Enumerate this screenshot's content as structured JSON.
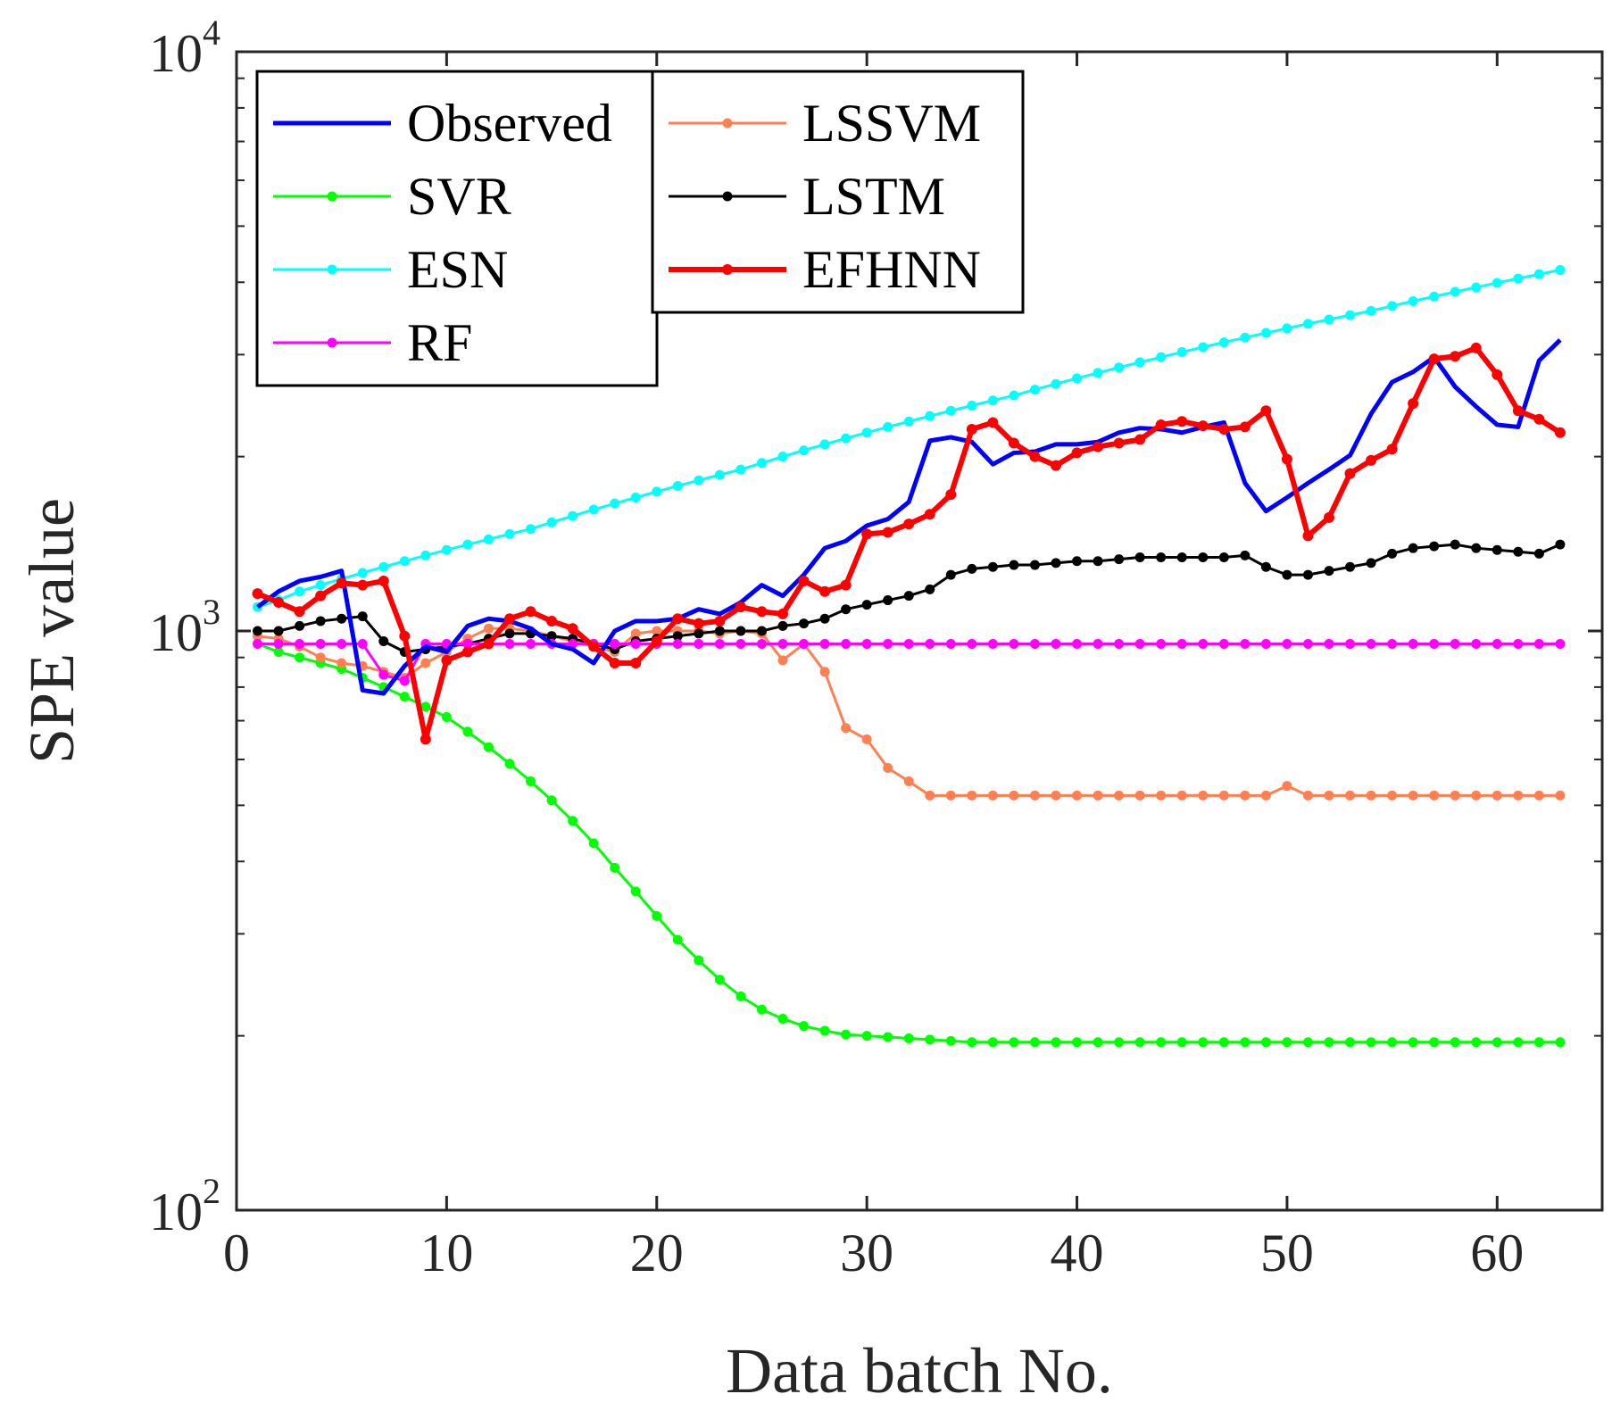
{
  "chart_data": {
    "type": "line",
    "title": "",
    "xlabel": "Data batch No.",
    "ylabel": "SPE value",
    "xlim": [
      0,
      65
    ],
    "ylim": [
      100,
      10000
    ],
    "yscale": "log",
    "x_ticks": [
      0,
      10,
      20,
      30,
      40,
      50,
      60
    ],
    "y_ticks": [
      {
        "value": 100,
        "base": "10",
        "exp": "2"
      },
      {
        "value": 1000,
        "base": "10",
        "exp": "3"
      },
      {
        "value": 10000,
        "base": "10",
        "exp": "4"
      }
    ],
    "grid": false,
    "legend_location": "top-left (two boxes)",
    "x": [
      1,
      2,
      3,
      4,
      5,
      6,
      7,
      8,
      9,
      10,
      11,
      12,
      13,
      14,
      15,
      16,
      17,
      18,
      19,
      20,
      21,
      22,
      23,
      24,
      25,
      26,
      27,
      28,
      29,
      30,
      31,
      32,
      33,
      34,
      35,
      36,
      37,
      38,
      39,
      40,
      41,
      42,
      43,
      44,
      45,
      46,
      47,
      48,
      49,
      50,
      51,
      52,
      53,
      54,
      55,
      56,
      57,
      58,
      59,
      60,
      61,
      62,
      63
    ],
    "series": [
      {
        "name": "Observed",
        "color": "#0000ff",
        "width": 5,
        "marker": false,
        "legend_col": 0,
        "values": [
          1100,
          1170,
          1220,
          1240,
          1270,
          790,
          780,
          870,
          940,
          920,
          1020,
          1050,
          1040,
          1010,
          950,
          930,
          880,
          1000,
          1040,
          1040,
          1050,
          1090,
          1070,
          1120,
          1200,
          1150,
          1250,
          1390,
          1430,
          1520,
          1560,
          1670,
          2130,
          2160,
          2120,
          1940,
          2030,
          2040,
          2100,
          2100,
          2120,
          2200,
          2240,
          2230,
          2200,
          2250,
          2290,
          1800,
          1610,
          1700,
          1800,
          1900,
          2010,
          2370,
          2690,
          2800,
          2970,
          2640,
          2440,
          2270,
          2250,
          2930,
          3180
        ]
      },
      {
        "name": "SVR",
        "color": "#00ff00",
        "width": 3,
        "marker": true,
        "legend_col": 0,
        "values": [
          950,
          920,
          900,
          880,
          860,
          830,
          800,
          770,
          740,
          710,
          670,
          630,
          590,
          550,
          510,
          470,
          430,
          390,
          355,
          322,
          293,
          270,
          250,
          234,
          222,
          214,
          208,
          204,
          201,
          200,
          199,
          198,
          197,
          196,
          195,
          195,
          195,
          195,
          195,
          195,
          195,
          195,
          195,
          195,
          195,
          195,
          195,
          195,
          195,
          195,
          195,
          195,
          195,
          195,
          195,
          195,
          195,
          195,
          195,
          195,
          195,
          195,
          195
        ]
      },
      {
        "name": "ESN",
        "color": "#00ffff",
        "width": 3,
        "marker": true,
        "legend_col": 0,
        "values": [
          1100,
          1130,
          1170,
          1200,
          1230,
          1260,
          1290,
          1320,
          1350,
          1380,
          1410,
          1440,
          1470,
          1500,
          1540,
          1580,
          1620,
          1660,
          1700,
          1740,
          1780,
          1820,
          1860,
          1900,
          1950,
          2000,
          2050,
          2100,
          2150,
          2200,
          2250,
          2300,
          2350,
          2400,
          2450,
          2500,
          2550,
          2610,
          2670,
          2730,
          2790,
          2850,
          2910,
          2970,
          3030,
          3090,
          3150,
          3210,
          3270,
          3330,
          3390,
          3450,
          3510,
          3570,
          3640,
          3710,
          3780,
          3850,
          3920,
          3990,
          4060,
          4130,
          4200
        ]
      },
      {
        "name": "RF",
        "color": "#ff00ff",
        "width": 3,
        "marker": true,
        "legend_col": 0,
        "values": [
          950,
          950,
          950,
          950,
          950,
          950,
          840,
          820,
          950,
          950,
          950,
          950,
          950,
          950,
          950,
          950,
          950,
          950,
          950,
          950,
          950,
          950,
          950,
          950,
          950,
          950,
          950,
          950,
          950,
          950,
          950,
          950,
          950,
          950,
          950,
          950,
          950,
          950,
          950,
          950,
          950,
          950,
          950,
          950,
          950,
          950,
          950,
          950,
          950,
          950,
          950,
          950,
          950,
          950,
          950,
          950,
          950,
          950,
          950,
          950,
          950,
          950,
          950
        ]
      },
      {
        "name": "LSSVM",
        "color": "#ff7f50",
        "width": 3,
        "marker": true,
        "legend_col": 1,
        "values": [
          980,
          970,
          940,
          900,
          880,
          870,
          850,
          830,
          880,
          920,
          970,
          1010,
          1010,
          1000,
          980,
          960,
          940,
          920,
          990,
          1000,
          1000,
          1000,
          990,
          1000,
          990,
          890,
          950,
          850,
          680,
          650,
          580,
          550,
          520,
          520,
          520,
          520,
          520,
          520,
          520,
          520,
          520,
          520,
          520,
          520,
          520,
          520,
          520,
          520,
          520,
          540,
          520,
          520,
          520,
          520,
          520,
          520,
          520,
          520,
          520,
          520,
          520,
          520,
          520
        ]
      },
      {
        "name": "LSTM",
        "color": "#000000",
        "width": 3,
        "marker": true,
        "legend_col": 1,
        "values": [
          1000,
          1000,
          1020,
          1040,
          1050,
          1060,
          960,
          920,
          930,
          940,
          950,
          970,
          990,
          990,
          980,
          970,
          950,
          930,
          960,
          970,
          980,
          990,
          1000,
          1000,
          1000,
          1020,
          1030,
          1050,
          1090,
          1110,
          1130,
          1150,
          1180,
          1250,
          1280,
          1290,
          1300,
          1300,
          1310,
          1320,
          1320,
          1330,
          1340,
          1340,
          1340,
          1340,
          1340,
          1350,
          1290,
          1250,
          1250,
          1270,
          1290,
          1310,
          1360,
          1390,
          1400,
          1410,
          1390,
          1380,
          1370,
          1360,
          1410
        ]
      },
      {
        "name": "EFHNN",
        "color": "#ff0000",
        "width": 6,
        "marker": true,
        "legend_col": 1,
        "values": [
          1160,
          1120,
          1080,
          1150,
          1210,
          1200,
          1220,
          980,
          650,
          890,
          920,
          950,
          1050,
          1080,
          1040,
          1010,
          940,
          880,
          880,
          960,
          1050,
          1030,
          1040,
          1100,
          1080,
          1070,
          1220,
          1170,
          1200,
          1470,
          1480,
          1530,
          1590,
          1720,
          2230,
          2290,
          2110,
          2000,
          1930,
          2030,
          2080,
          2110,
          2140,
          2270,
          2300,
          2260,
          2230,
          2250,
          2400,
          1980,
          1460,
          1570,
          1870,
          1970,
          2060,
          2470,
          2950,
          2980,
          3080,
          2770,
          2400,
          2320,
          2200
        ]
      }
    ]
  }
}
